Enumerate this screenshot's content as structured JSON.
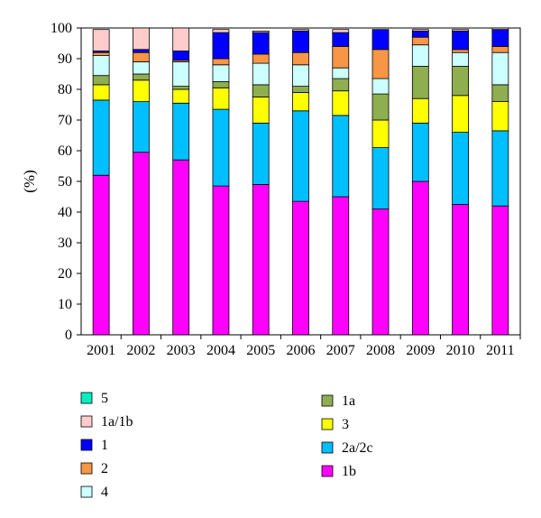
{
  "chart_data": {
    "type": "bar",
    "stacked": true,
    "title": "",
    "xlabel": "",
    "ylabel": "(%)",
    "ylim": [
      0,
      100
    ],
    "yticks": [
      0,
      10,
      20,
      30,
      40,
      50,
      60,
      70,
      80,
      90,
      100
    ],
    "grid": false,
    "legend_position": "bottom",
    "categories": [
      "2001",
      "2002",
      "2003",
      "2004",
      "2005",
      "2006",
      "2007",
      "2008",
      "2009",
      "2010",
      "2011"
    ],
    "series": [
      {
        "name": "1b",
        "color": "#ff00ff",
        "values": [
          52,
          59.5,
          57,
          48.5,
          49,
          43.5,
          45,
          41,
          50,
          42.5,
          42
        ]
      },
      {
        "name": "2a/2c",
        "color": "#00bfff",
        "values": [
          24.5,
          16.5,
          18.5,
          25,
          20,
          29.5,
          26.5,
          20,
          19,
          23.5,
          24.5
        ]
      },
      {
        "name": "3",
        "color": "#ffff00",
        "values": [
          5,
          7,
          4.5,
          7,
          8.5,
          6,
          8,
          9,
          8,
          12,
          9.5
        ]
      },
      {
        "name": "1a",
        "color": "#8fae4f",
        "values": [
          3,
          2,
          1,
          2,
          4,
          2,
          4,
          8.5,
          10.5,
          9.5,
          5.5
        ]
      },
      {
        "name": "4",
        "color": "#ccffff",
        "values": [
          6.5,
          4,
          8,
          5.5,
          7,
          7,
          3.5,
          5,
          7,
          4.5,
          10.5
        ]
      },
      {
        "name": "2",
        "color": "#f79646",
        "values": [
          1,
          3,
          0.5,
          2,
          3,
          4,
          7,
          9.5,
          2.5,
          1,
          2
        ]
      },
      {
        "name": "1",
        "color": "#0000ff",
        "values": [
          0.5,
          1,
          3,
          8.5,
          7,
          7,
          4.5,
          6.5,
          2,
          6,
          5.5
        ]
      },
      {
        "name": "1a/1b",
        "color": "#ffcccc",
        "values": [
          7,
          7,
          7.5,
          1,
          0.5,
          0.5,
          1,
          0,
          0.5,
          0.5,
          0.5
        ]
      },
      {
        "name": "5",
        "color": "#00f0c0",
        "values": [
          0,
          0,
          0,
          0,
          0,
          0,
          0,
          0,
          0,
          0,
          0
        ]
      }
    ],
    "legend_left": [
      "5",
      "1a/1b",
      "1",
      "2",
      "4"
    ],
    "legend_right": [
      "1a",
      "3",
      "2a/2c",
      "1b"
    ]
  }
}
